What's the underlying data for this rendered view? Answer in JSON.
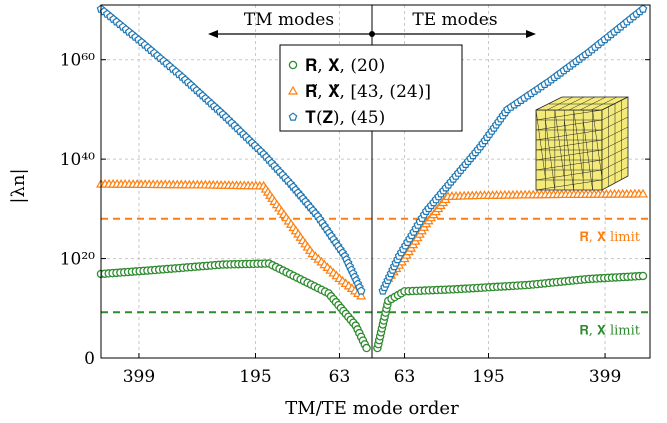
{
  "chart_data": {
    "type": "scatter",
    "title": "",
    "xlabel": "TM/TE mode order",
    "ylabel": "|λn|",
    "yscale": "log",
    "ylim_exponent": [
      0,
      71
    ],
    "yticks": [
      {
        "exp": 0,
        "label": "0"
      },
      {
        "exp": 20,
        "label": "10²⁰"
      },
      {
        "exp": 40,
        "label": "10⁴⁰"
      },
      {
        "exp": 60,
        "label": "10⁶⁰"
      }
    ],
    "xticks": [
      {
        "side": "TM",
        "order": 399,
        "label": "399"
      },
      {
        "side": "TM",
        "order": 195,
        "label": "195"
      },
      {
        "side": "TM",
        "order": 63,
        "label": "63"
      },
      {
        "side": "TE",
        "order": 63,
        "label": "63"
      },
      {
        "side": "TE",
        "order": 195,
        "label": "195"
      },
      {
        "side": "TE",
        "order": 399,
        "label": "399"
      }
    ],
    "grid": true,
    "legend_position": "top-center",
    "regions": {
      "tm": "TM modes",
      "te": "TE modes"
    },
    "series": [
      {
        "name": "R, X, (20)",
        "legend_label": "𝐑, 𝐗, (20)",
        "marker": "circle",
        "color": "#2e8b2e",
        "tm_segments": [
          [
            1.0,
            16.9
          ],
          [
            0.8,
            17.7
          ],
          [
            0.55,
            18.8
          ],
          [
            0.38,
            19.0
          ],
          [
            0.16,
            13.0
          ],
          [
            0.06,
            6.5
          ],
          [
            0.02,
            2.0
          ]
        ],
        "te_segments": [
          [
            0.02,
            2.0
          ],
          [
            0.06,
            11.5
          ],
          [
            0.12,
            13.4
          ],
          [
            0.3,
            13.8
          ],
          [
            0.58,
            14.7
          ],
          [
            0.8,
            15.9
          ],
          [
            1.0,
            16.5
          ]
        ]
      },
      {
        "name": "R̃, X̃, [43, (24)]",
        "legend_label": "𝐑̃, 𝐗̃, [43, (24)]",
        "marker": "triangle",
        "color": "#ff7f0e",
        "tm_segments": [
          [
            1.0,
            35.0
          ],
          [
            0.6,
            34.8
          ],
          [
            0.4,
            34.6
          ],
          [
            0.36,
            31.5
          ],
          [
            0.22,
            21.0
          ],
          [
            0.12,
            16.0
          ],
          [
            0.04,
            12.5
          ]
        ],
        "te_segments": [
          [
            0.06,
            16.0
          ],
          [
            0.12,
            20.0
          ],
          [
            0.2,
            27.0
          ],
          [
            0.28,
            32.5
          ],
          [
            0.4,
            32.7
          ],
          [
            0.7,
            32.9
          ],
          [
            1.0,
            33.0
          ]
        ]
      },
      {
        "name": "T(Z), (45)",
        "legend_label": "𝐓(𝐙), (45)",
        "marker": "pentagon",
        "color": "#1f77b4",
        "tm_segments": [
          [
            1.0,
            70.2
          ],
          [
            0.85,
            63.5
          ],
          [
            0.7,
            56.5
          ],
          [
            0.55,
            49.0
          ],
          [
            0.4,
            41.0
          ],
          [
            0.3,
            35.0
          ],
          [
            0.2,
            28.5
          ],
          [
            0.1,
            20.5
          ],
          [
            0.04,
            13.5
          ]
        ],
        "te_segments": [
          [
            0.04,
            13.5
          ],
          [
            0.1,
            20.5
          ],
          [
            0.2,
            29.5
          ],
          [
            0.3,
            36.0
          ],
          [
            0.4,
            42.5
          ],
          [
            0.5,
            50.0
          ],
          [
            0.65,
            55.5
          ],
          [
            0.8,
            61.5
          ],
          [
            1.0,
            70.2
          ]
        ]
      }
    ],
    "limits": [
      {
        "label": "𝐑̃, 𝐗̃ limit",
        "exp": 28.0,
        "color": "#ff7f0e"
      },
      {
        "label": "𝐑, 𝐗 limit",
        "exp": 9.2,
        "color": "#2e8b2e"
      }
    ]
  }
}
